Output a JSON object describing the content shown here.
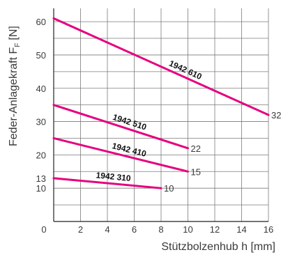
{
  "chart_data": {
    "type": "line",
    "xlabel": "Stützbolzenhub h [mm]",
    "ylabel_main": "Feder-Anlagekraft F",
    "ylabel_sub": "F",
    "ylabel_unit": "[N]",
    "xlim": [
      0,
      16
    ],
    "ylim": [
      0,
      64
    ],
    "x_ticks": [
      "0",
      "2",
      "4",
      "6",
      "8",
      "10",
      "12",
      "14",
      "16"
    ],
    "y_ticks": [
      {
        "value": 10,
        "label": "10"
      },
      {
        "value": 13,
        "label": "13"
      },
      {
        "value": 20,
        "label": "20"
      },
      {
        "value": 30,
        "label": "30"
      },
      {
        "value": 40,
        "label": "40"
      },
      {
        "value": 50,
        "label": "50"
      },
      {
        "value": 60,
        "label": "60"
      }
    ],
    "grid": true,
    "line_color": "#e6007e",
    "series": [
      {
        "name": "1942 610",
        "x": [
          0,
          16
        ],
        "y": [
          61,
          32
        ],
        "end_label": "32"
      },
      {
        "name": "1942 510",
        "x": [
          0,
          10
        ],
        "y": [
          35,
          22
        ],
        "end_label": "22"
      },
      {
        "name": "1942 410",
        "x": [
          0,
          10
        ],
        "y": [
          25,
          15
        ],
        "end_label": "15"
      },
      {
        "name": "1942 310",
        "x": [
          0,
          8
        ],
        "y": [
          13,
          10
        ],
        "end_label": "10"
      }
    ]
  }
}
